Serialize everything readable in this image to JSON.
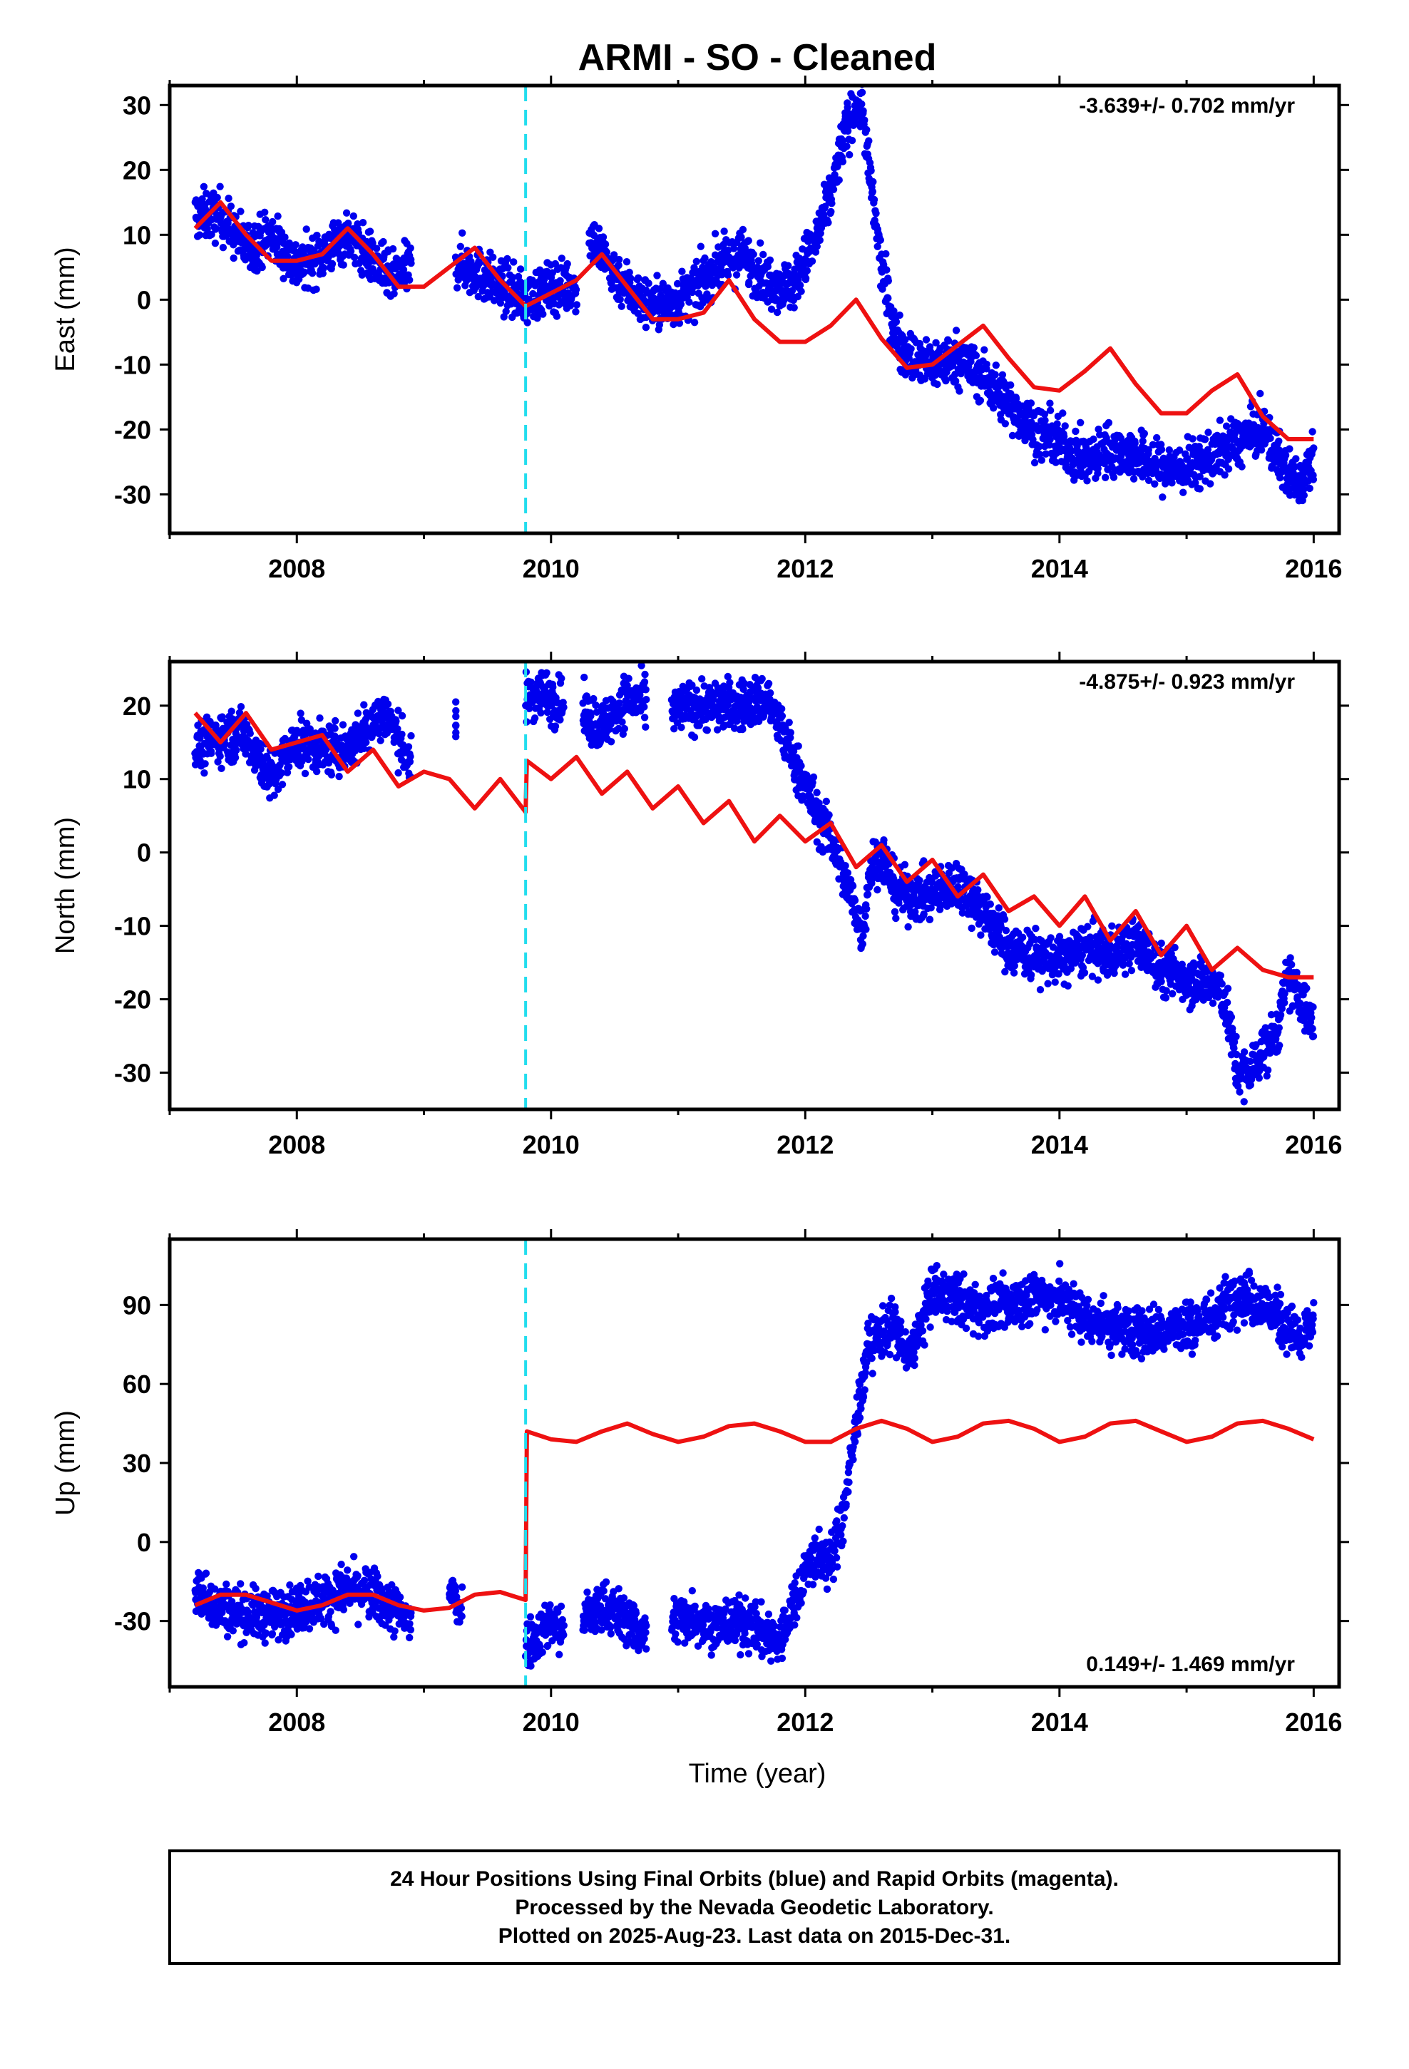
{
  "title": "ARMI  - SO - Cleaned",
  "xlabel": "Time (year)",
  "colors": {
    "data": "#0000ee",
    "model": "#ee1111",
    "offset": "#22ddee",
    "frame": "#000000"
  },
  "footer": {
    "line1": "24 Hour Positions Using Final Orbits (blue) and Rapid Orbits (magenta).",
    "line2": "Processed by the Nevada Geodetic Laboratory.",
    "line3": "Plotted on 2025-Aug-23. Last data on 2015-Dec-31."
  },
  "chart_data": [
    {
      "type": "scatter",
      "component": "East",
      "ylabel": "East (mm)",
      "rate_label": "-3.639+/- 0.702 mm/yr",
      "rate_position": "top-right",
      "xlim": [
        2007.0,
        2016.2
      ],
      "ylim": [
        -36,
        33
      ],
      "x_ticks": [
        2008,
        2010,
        2012,
        2014,
        2016
      ],
      "y_ticks": [
        30,
        20,
        10,
        0,
        -10,
        -20,
        -30
      ],
      "offset_epoch": 2009.8,
      "series": [
        {
          "kind": "daily_positions",
          "segments": [
            {
              "x": [
                2007.2,
                2007.4,
                2007.6,
                2007.8,
                2008.0,
                2008.2,
                2008.4,
                2008.6,
                2008.75,
                2008.9
              ],
              "y": [
                13,
                13,
                8,
                10,
                5,
                7,
                10,
                6,
                3,
                5
              ]
            },
            {
              "x": [
                2009.25,
                2009.8,
                2010.0,
                2010.2
              ],
              "y": [
                6,
                0,
                2,
                2
              ]
            },
            {
              "x": [
                2010.3,
                2010.5,
                2010.7,
                2010.9,
                2011.1,
                2011.3,
                2011.5,
                2011.7,
                2011.9,
                2012.0,
                2012.1,
                2012.2,
                2012.3,
                2012.4,
                2012.45,
                2012.5,
                2012.6,
                2012.7,
                2012.8,
                2012.9,
                2013.0,
                2013.2,
                2013.4,
                2013.6,
                2013.8,
                2014.0,
                2014.2,
                2014.4,
                2014.6,
                2014.8,
                2015.0,
                2015.2,
                2015.4,
                2015.6,
                2015.8,
                2015.9,
                2016.0
              ],
              "y": [
                10,
                4,
                0,
                -1,
                1,
                5,
                7,
                3,
                2,
                6,
                10,
                16,
                25,
                30,
                30,
                20,
                5,
                -5,
                -8,
                -10,
                -10,
                -9,
                -12,
                -16,
                -20,
                -22,
                -25,
                -23,
                -24,
                -26,
                -26,
                -24,
                -22,
                -20,
                -27,
                -28,
                -23
              ]
            }
          ]
        },
        {
          "kind": "model",
          "x": [
            2007.2,
            2007.4,
            2007.6,
            2007.8,
            2008.0,
            2008.2,
            2008.4,
            2008.6,
            2008.8,
            2009.0,
            2009.2,
            2009.4,
            2009.6,
            2009.8,
            2010.0,
            2010.2,
            2010.4,
            2010.6,
            2010.8,
            2011.0,
            2011.2,
            2011.4,
            2011.6,
            2011.8,
            2012.0,
            2012.2,
            2012.4,
            2012.6,
            2012.8,
            2013.0,
            2013.2,
            2013.4,
            2013.6,
            2013.8,
            2014.0,
            2014.2,
            2014.4,
            2014.6,
            2014.8,
            2015.0,
            2015.2,
            2015.4,
            2015.6,
            2015.8,
            2016.0
          ],
          "y": [
            11,
            15,
            10,
            6,
            6,
            7,
            11,
            7,
            2,
            2,
            5,
            8,
            3,
            -1,
            1,
            3,
            7,
            2,
            -3,
            -3,
            -2,
            3,
            -3,
            -6.5,
            -6.5,
            -4,
            0,
            -6,
            -10.5,
            -10,
            -7,
            -4,
            -9,
            -13.5,
            -14,
            -11,
            -7.5,
            -13,
            -17.5,
            -17.5,
            -14,
            -11.5,
            -18,
            -21.5,
            -21.5
          ]
        }
      ]
    },
    {
      "type": "scatter",
      "component": "North",
      "ylabel": "North (mm)",
      "rate_label": "-4.875+/- 0.923 mm/yr",
      "rate_position": "top-right",
      "xlim": [
        2007.0,
        2016.2
      ],
      "ylim": [
        -35,
        26
      ],
      "x_ticks": [
        2008,
        2010,
        2012,
        2014,
        2016
      ],
      "y_ticks": [
        20,
        10,
        0,
        -10,
        -20,
        -30
      ],
      "offset_epoch": 2009.8,
      "series": [
        {
          "kind": "daily_positions",
          "segments": [
            {
              "x": [
                2007.2,
                2007.4,
                2007.6,
                2007.8,
                2008.0,
                2008.2,
                2008.4,
                2008.6,
                2008.7,
                2008.9
              ],
              "y": [
                14,
                16,
                16,
                10,
                15,
                14,
                14,
                18,
                19,
                12
              ]
            },
            {
              "x": [
                2009.25
              ],
              "y": [
                17
              ]
            },
            {
              "x": [
                2009.8,
                2009.9,
                2010.0,
                2010.1
              ],
              "y": [
                21,
                22,
                21,
                20
              ]
            },
            {
              "x": [
                2010.25,
                2010.4,
                2010.6,
                2010.75
              ],
              "y": [
                19,
                17,
                21,
                20
              ]
            },
            {
              "x": [
                2010.95,
                2011.1,
                2011.3,
                2011.5,
                2011.7,
                2011.8,
                2011.9,
                2012.0,
                2012.1,
                2012.2,
                2012.3,
                2012.4,
                2012.45,
                2012.5,
                2012.6,
                2012.7,
                2012.8,
                2013.0,
                2013.2,
                2013.4,
                2013.6,
                2013.8,
                2014.0,
                2014.2,
                2014.4,
                2014.6,
                2014.8,
                2015.0,
                2015.2,
                2015.3,
                2015.4,
                2015.5,
                2015.6,
                2015.7,
                2015.8,
                2015.9,
                2016.0
              ],
              "y": [
                19,
                20,
                20,
                20,
                21,
                17,
                13,
                9,
                5,
                2,
                -3,
                -8,
                -11,
                -3,
                0,
                -5,
                -6,
                -6,
                -4,
                -8,
                -13,
                -14,
                -15,
                -13,
                -14,
                -12,
                -16,
                -17,
                -18,
                -20,
                -30,
                -30,
                -27,
                -25,
                -17,
                -20,
                -24
              ]
            }
          ]
        },
        {
          "kind": "model",
          "x": [
            2007.2,
            2007.4,
            2007.6,
            2007.8,
            2008.0,
            2008.2,
            2008.4,
            2008.6,
            2008.8,
            2009.0,
            2009.2,
            2009.4,
            2009.6,
            2009.8,
            2009.81,
            2010.0,
            2010.2,
            2010.4,
            2010.6,
            2010.8,
            2011.0,
            2011.2,
            2011.4,
            2011.6,
            2011.8,
            2012.0,
            2012.2,
            2012.4,
            2012.6,
            2012.8,
            2013.0,
            2013.2,
            2013.4,
            2013.6,
            2013.8,
            2014.0,
            2014.2,
            2014.4,
            2014.6,
            2014.8,
            2015.0,
            2015.2,
            2015.4,
            2015.6,
            2015.8,
            2016.0
          ],
          "y": [
            19,
            15,
            19,
            14,
            15,
            16,
            11,
            14,
            9,
            11,
            10,
            6,
            10,
            5.5,
            12.5,
            10,
            13,
            8,
            11,
            6,
            9,
            4,
            7,
            1.5,
            5,
            1.5,
            4,
            -2,
            1,
            -4,
            -1,
            -6,
            -3,
            -8,
            -6,
            -10,
            -6,
            -12,
            -8,
            -14,
            -10,
            -16,
            -13,
            -16,
            -17,
            -17
          ]
        }
      ]
    },
    {
      "type": "scatter",
      "component": "Up",
      "ylabel": "Up (mm)",
      "rate_label": "0.149+/- 1.469 mm/yr",
      "rate_position": "bottom-right",
      "xlim": [
        2007.0,
        2016.2
      ],
      "ylim": [
        -55,
        115
      ],
      "x_ticks": [
        2008,
        2010,
        2012,
        2014,
        2016
      ],
      "y_ticks": [
        90,
        60,
        30,
        0,
        -30
      ],
      "offset_epoch": 2009.8,
      "series": [
        {
          "kind": "daily_positions",
          "segments": [
            {
              "x": [
                2007.2,
                2007.4,
                2007.6,
                2007.8,
                2008.0,
                2008.2,
                2008.4,
                2008.6,
                2008.8,
                2008.9
              ],
              "y": [
                -18,
                -25,
                -27,
                -28,
                -25,
                -22,
                -18,
                -20,
                -27,
                -30
              ]
            },
            {
              "x": [
                2009.2,
                2009.3
              ],
              "y": [
                -18,
                -25
              ]
            },
            {
              "x": [
                2009.8,
                2009.9,
                2010.0,
                2010.1
              ],
              "y": [
                -38,
                -35,
                -30,
                -35
              ]
            },
            {
              "x": [
                2010.25,
                2010.45,
                2010.6,
                2010.75
              ],
              "y": [
                -28,
                -25,
                -30,
                -35
              ]
            },
            {
              "x": [
                2010.95,
                2011.1,
                2011.3,
                2011.5,
                2011.7,
                2011.8,
                2011.9,
                2012.0,
                2012.1,
                2012.2,
                2012.3,
                2012.4,
                2012.5,
                2012.6,
                2012.7,
                2012.8,
                2012.9,
                2013.0,
                2013.2,
                2013.4,
                2013.6,
                2013.8,
                2014.0,
                2014.2,
                2014.4,
                2014.6,
                2014.8,
                2015.0,
                2015.2,
                2015.4,
                2015.6,
                2015.8,
                2015.9,
                2016.0
              ],
              "y": [
                -30,
                -28,
                -32,
                -30,
                -35,
                -38,
                -25,
                -10,
                -5,
                -8,
                10,
                45,
                75,
                80,
                82,
                70,
                80,
                95,
                92,
                88,
                90,
                94,
                93,
                85,
                82,
                80,
                80,
                82,
                85,
                95,
                90,
                82,
                75,
                85
              ]
            }
          ]
        },
        {
          "kind": "model",
          "x": [
            2007.2,
            2007.4,
            2007.6,
            2007.8,
            2008.0,
            2008.2,
            2008.4,
            2008.6,
            2008.8,
            2009.0,
            2009.2,
            2009.4,
            2009.6,
            2009.8,
            2009.81,
            2010.0,
            2010.2,
            2010.4,
            2010.6,
            2010.8,
            2011.0,
            2011.2,
            2011.4,
            2011.6,
            2011.8,
            2012.0,
            2012.2,
            2012.4,
            2012.6,
            2012.8,
            2013.0,
            2013.2,
            2013.4,
            2013.6,
            2013.8,
            2014.0,
            2014.2,
            2014.4,
            2014.6,
            2014.8,
            2015.0,
            2015.2,
            2015.4,
            2015.6,
            2015.8,
            2016.0
          ],
          "y": [
            -24,
            -20,
            -20,
            -23,
            -26,
            -24,
            -20,
            -20,
            -24,
            -26,
            -25,
            -20,
            -19,
            -22,
            42,
            39,
            38,
            42,
            45,
            41,
            38,
            40,
            44,
            45,
            42,
            38,
            38,
            43,
            46,
            43,
            38,
            40,
            45,
            46,
            43,
            38,
            40,
            45,
            46,
            42,
            38,
            40,
            45,
            46,
            43,
            39
          ]
        }
      ]
    }
  ]
}
